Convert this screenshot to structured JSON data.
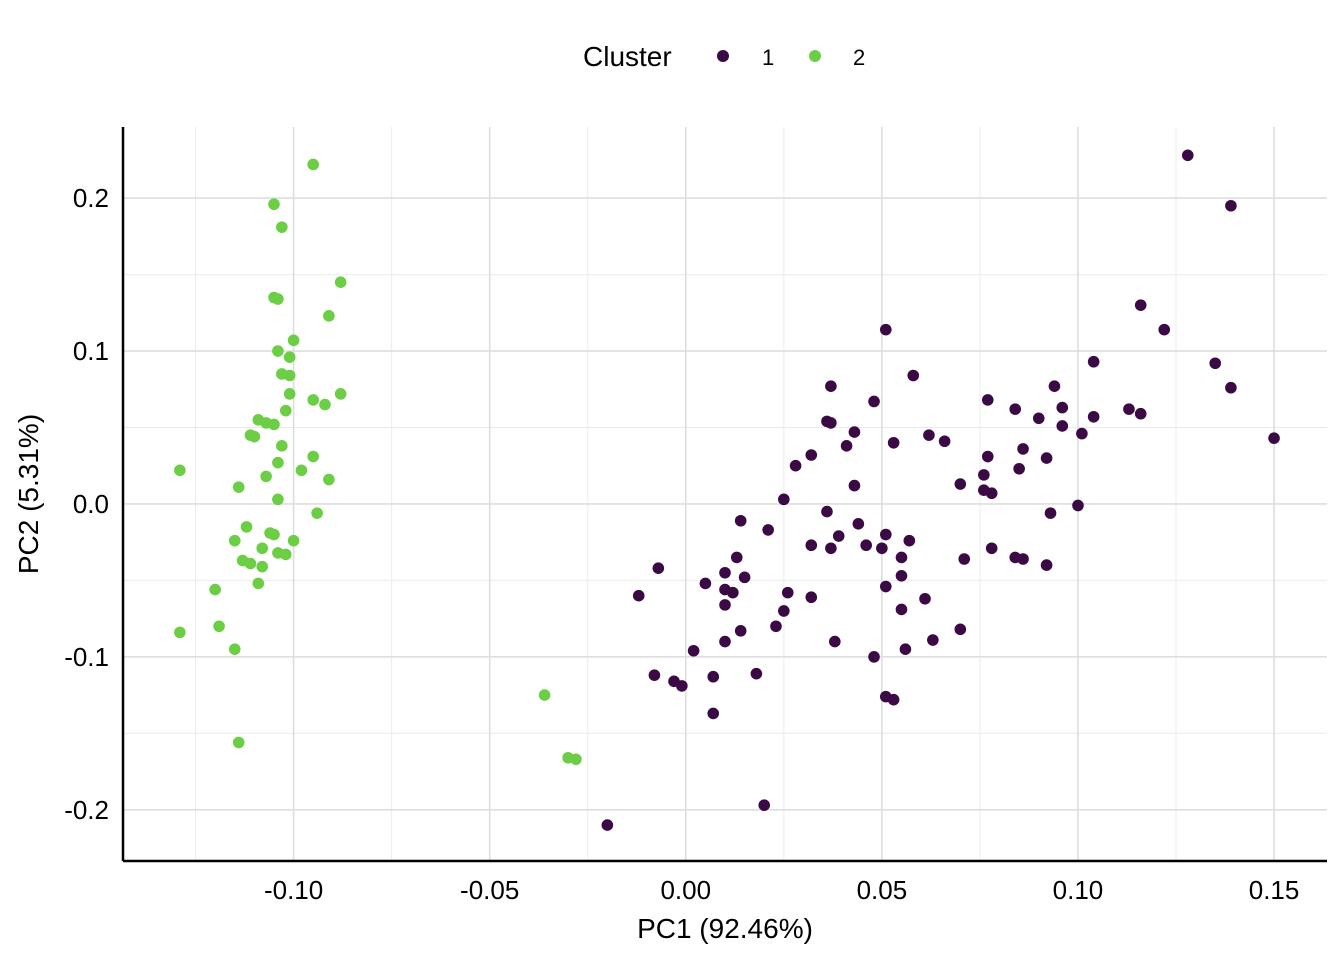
{
  "chart_data": {
    "type": "scatter",
    "xlabel": "PC1 (92.46%)",
    "ylabel": "PC2 (5.31%)",
    "xlim": [
      -0.1435,
      0.1635
    ],
    "ylim": [
      -0.2335,
      0.2465
    ],
    "x_ticks": [
      -0.1,
      -0.05,
      0.0,
      0.05,
      0.1,
      0.15
    ],
    "x_tick_labels": [
      "-0.10",
      "-0.05",
      "0.00",
      "0.05",
      "0.10",
      "0.15"
    ],
    "y_ticks": [
      0.2,
      0.1,
      0.0,
      -0.1,
      -0.2
    ],
    "y_tick_labels": [
      "0.2",
      "0.1",
      "0.0",
      "-0.1",
      "-0.2"
    ],
    "grid": true,
    "legend": {
      "title": "Cluster",
      "position": "top"
    },
    "series": [
      {
        "name": "1",
        "color": "#3b0a45",
        "points": [
          [
            0.128,
            0.228
          ],
          [
            0.139,
            0.195
          ],
          [
            0.051,
            0.114
          ],
          [
            0.116,
            0.13
          ],
          [
            0.122,
            0.114
          ],
          [
            0.104,
            0.093
          ],
          [
            0.135,
            0.092
          ],
          [
            0.139,
            0.076
          ],
          [
            0.15,
            0.043
          ],
          [
            0.058,
            0.084
          ],
          [
            0.037,
            0.077
          ],
          [
            0.048,
            0.067
          ],
          [
            0.077,
            0.068
          ],
          [
            0.084,
            0.062
          ],
          [
            0.094,
            0.077
          ],
          [
            0.096,
            0.063
          ],
          [
            0.09,
            0.056
          ],
          [
            0.104,
            0.057
          ],
          [
            0.113,
            0.062
          ],
          [
            0.116,
            0.059
          ],
          [
            0.096,
            0.051
          ],
          [
            0.101,
            0.046
          ],
          [
            0.036,
            0.054
          ],
          [
            0.037,
            0.053
          ],
          [
            0.043,
            0.047
          ],
          [
            0.062,
            0.045
          ],
          [
            0.066,
            0.041
          ],
          [
            0.053,
            0.04
          ],
          [
            0.041,
            0.038
          ],
          [
            0.086,
            0.036
          ],
          [
            0.032,
            0.032
          ],
          [
            0.077,
            0.031
          ],
          [
            0.092,
            0.03
          ],
          [
            0.028,
            0.025
          ],
          [
            0.085,
            0.023
          ],
          [
            0.076,
            0.019
          ],
          [
            0.07,
            0.013
          ],
          [
            0.043,
            0.012
          ],
          [
            0.076,
            0.009
          ],
          [
            0.078,
            0.007
          ],
          [
            0.025,
            0.003
          ],
          [
            0.1,
            -0.001
          ],
          [
            0.036,
            -0.005
          ],
          [
            0.093,
            -0.006
          ],
          [
            0.014,
            -0.011
          ],
          [
            0.044,
            -0.013
          ],
          [
            0.021,
            -0.017
          ],
          [
            0.051,
            -0.02
          ],
          [
            0.039,
            -0.021
          ],
          [
            0.057,
            -0.024
          ],
          [
            0.032,
            -0.027
          ],
          [
            0.046,
            -0.027
          ],
          [
            0.037,
            -0.029
          ],
          [
            0.05,
            -0.029
          ],
          [
            0.078,
            -0.029
          ],
          [
            0.013,
            -0.035
          ],
          [
            0.055,
            -0.035
          ],
          [
            0.084,
            -0.035
          ],
          [
            0.086,
            -0.036
          ],
          [
            0.071,
            -0.036
          ],
          [
            0.092,
            -0.04
          ],
          [
            -0.007,
            -0.042
          ],
          [
            0.01,
            -0.045
          ],
          [
            0.055,
            -0.047
          ],
          [
            0.015,
            -0.048
          ],
          [
            0.005,
            -0.052
          ],
          [
            0.01,
            -0.056
          ],
          [
            0.051,
            -0.054
          ],
          [
            0.012,
            -0.058
          ],
          [
            0.026,
            -0.058
          ],
          [
            -0.012,
            -0.06
          ],
          [
            0.032,
            -0.061
          ],
          [
            0.061,
            -0.062
          ],
          [
            0.01,
            -0.066
          ],
          [
            0.055,
            -0.069
          ],
          [
            0.025,
            -0.07
          ],
          [
            0.023,
            -0.08
          ],
          [
            0.07,
            -0.082
          ],
          [
            0.014,
            -0.083
          ],
          [
            0.063,
            -0.089
          ],
          [
            0.01,
            -0.09
          ],
          [
            0.038,
            -0.09
          ],
          [
            0.056,
            -0.095
          ],
          [
            0.002,
            -0.096
          ],
          [
            0.048,
            -0.1
          ],
          [
            0.018,
            -0.111
          ],
          [
            -0.008,
            -0.112
          ],
          [
            0.007,
            -0.113
          ],
          [
            -0.003,
            -0.116
          ],
          [
            -0.001,
            -0.119
          ],
          [
            0.051,
            -0.126
          ],
          [
            0.053,
            -0.128
          ],
          [
            0.007,
            -0.137
          ],
          [
            0.02,
            -0.197
          ],
          [
            -0.02,
            -0.21
          ]
        ]
      },
      {
        "name": "2",
        "color": "#6cce44",
        "points": [
          [
            -0.095,
            0.222
          ],
          [
            -0.105,
            0.196
          ],
          [
            -0.103,
            0.181
          ],
          [
            -0.088,
            0.145
          ],
          [
            -0.105,
            0.135
          ],
          [
            -0.104,
            0.134
          ],
          [
            -0.091,
            0.123
          ],
          [
            -0.1,
            0.107
          ],
          [
            -0.104,
            0.1
          ],
          [
            -0.101,
            0.096
          ],
          [
            -0.103,
            0.085
          ],
          [
            -0.101,
            0.084
          ],
          [
            -0.088,
            0.072
          ],
          [
            -0.101,
            0.072
          ],
          [
            -0.095,
            0.068
          ],
          [
            -0.092,
            0.065
          ],
          [
            -0.102,
            0.061
          ],
          [
            -0.109,
            0.055
          ],
          [
            -0.107,
            0.053
          ],
          [
            -0.105,
            0.052
          ],
          [
            -0.111,
            0.045
          ],
          [
            -0.11,
            0.044
          ],
          [
            -0.103,
            0.038
          ],
          [
            -0.095,
            0.031
          ],
          [
            -0.104,
            0.027
          ],
          [
            -0.129,
            0.022
          ],
          [
            -0.098,
            0.022
          ],
          [
            -0.107,
            0.018
          ],
          [
            -0.091,
            0.016
          ],
          [
            -0.114,
            0.011
          ],
          [
            -0.104,
            0.003
          ],
          [
            -0.094,
            -0.006
          ],
          [
            -0.112,
            -0.015
          ],
          [
            -0.106,
            -0.019
          ],
          [
            -0.105,
            -0.02
          ],
          [
            -0.115,
            -0.024
          ],
          [
            -0.1,
            -0.024
          ],
          [
            -0.108,
            -0.029
          ],
          [
            -0.104,
            -0.032
          ],
          [
            -0.102,
            -0.033
          ],
          [
            -0.113,
            -0.037
          ],
          [
            -0.111,
            -0.039
          ],
          [
            -0.108,
            -0.041
          ],
          [
            -0.109,
            -0.052
          ],
          [
            -0.12,
            -0.056
          ],
          [
            -0.119,
            -0.08
          ],
          [
            -0.129,
            -0.084
          ],
          [
            -0.115,
            -0.095
          ],
          [
            -0.036,
            -0.125
          ],
          [
            -0.03,
            -0.166
          ],
          [
            -0.028,
            -0.167
          ],
          [
            -0.114,
            -0.156
          ]
        ]
      }
    ]
  }
}
